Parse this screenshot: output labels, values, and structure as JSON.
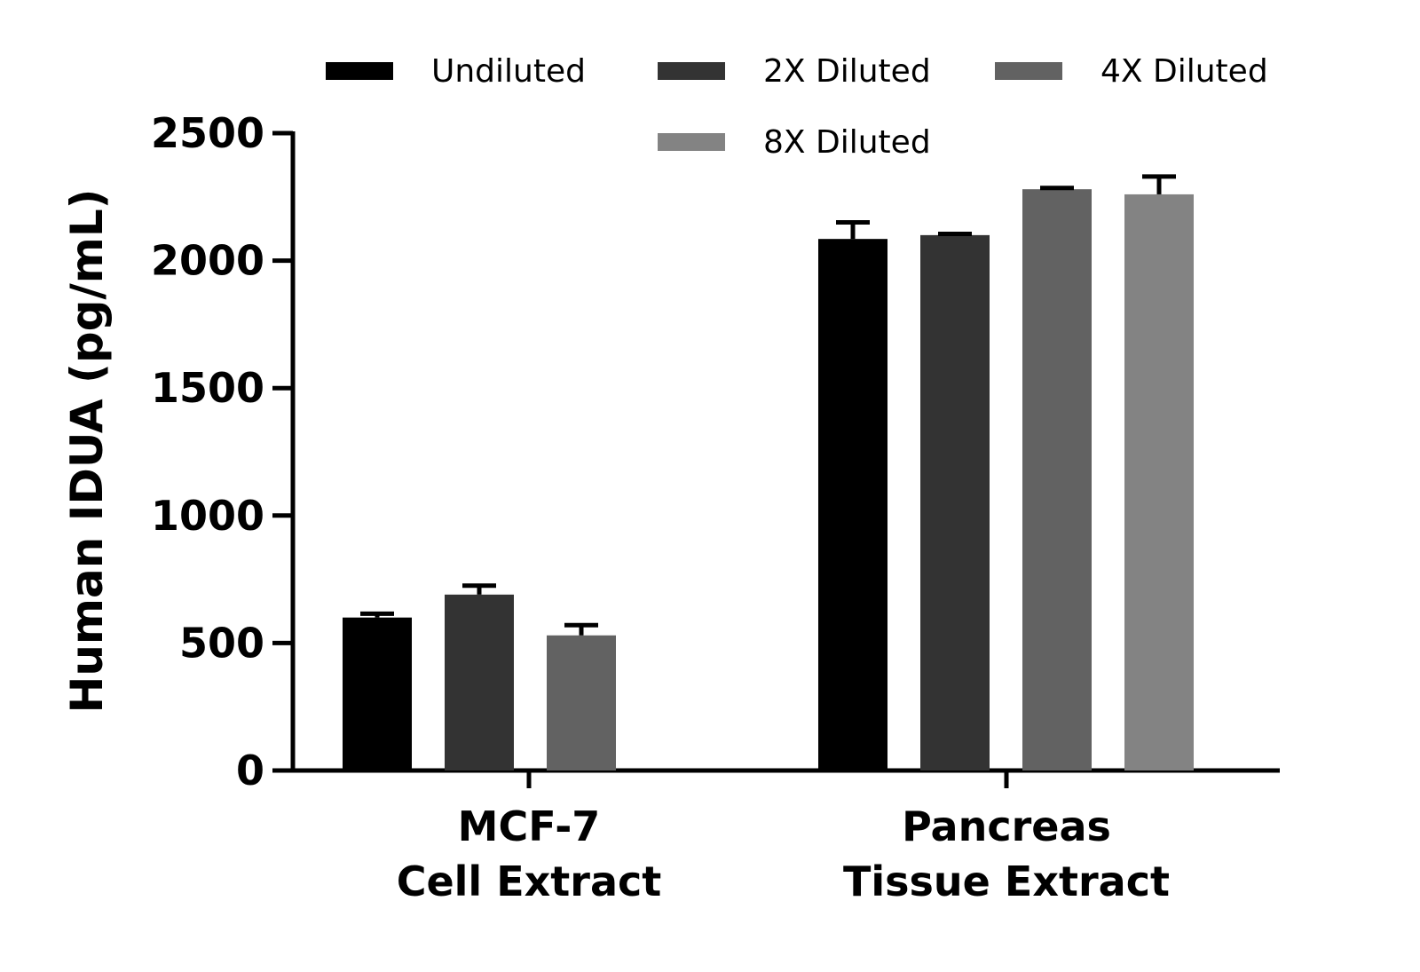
{
  "chart_data": {
    "type": "bar",
    "title": "",
    "ylabel": "Human IDUA (pg/mL)",
    "xlabel": "",
    "ylim": [
      0,
      2500
    ],
    "yticks": [
      "0",
      "500",
      "1000",
      "1500",
      "2000",
      "2500"
    ],
    "grid": false,
    "legend_position": "top",
    "categories": [
      {
        "id": "mcf7",
        "lines": [
          "MCF-7",
          "Cell Extract"
        ]
      },
      {
        "id": "pancreas",
        "lines": [
          "Pancreas",
          "Tissue Extract"
        ]
      }
    ],
    "series": [
      {
        "name": "Undiluted",
        "color": "#000000",
        "values": [
          600,
          2085
        ],
        "errors": [
          15,
          65
        ]
      },
      {
        "name": "2X Diluted",
        "color": "#333333",
        "values": [
          690,
          2100
        ],
        "errors": [
          35,
          5
        ]
      },
      {
        "name": "4X Diluted",
        "color": "#626262",
        "values": [
          530,
          2280
        ],
        "errors": [
          40,
          5
        ]
      },
      {
        "name": "8X Diluted",
        "color": "#838383",
        "values": [
          null,
          2260
        ],
        "errors": [
          null,
          70
        ]
      }
    ]
  }
}
